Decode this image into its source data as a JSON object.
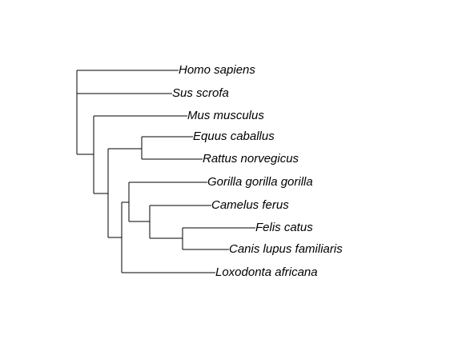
{
  "tree": {
    "line_color": "#000000",
    "tips": [
      {
        "id": "homo",
        "label": "Homo sapiens"
      },
      {
        "id": "sus",
        "label": "Sus scrofa"
      },
      {
        "id": "mus",
        "label": "Mus musculus"
      },
      {
        "id": "equus",
        "label": "Equus caballus"
      },
      {
        "id": "rattus",
        "label": "Rattus norvegicus"
      },
      {
        "id": "gorilla",
        "label": "Gorilla gorilla gorilla"
      },
      {
        "id": "camelus",
        "label": "Camelus ferus"
      },
      {
        "id": "felis",
        "label": "Felis catus"
      },
      {
        "id": "canis",
        "label": "Canis lupus familiaris"
      },
      {
        "id": "loxodonta",
        "label": "Loxodonta africana"
      }
    ]
  }
}
